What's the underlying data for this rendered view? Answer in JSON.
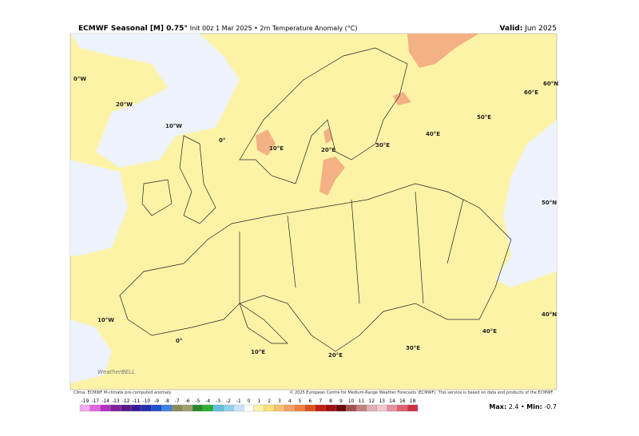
{
  "header": {
    "title": "ECMWF Seasonal [M] 0.75°",
    "subtitle": "Init 00z 1 Mar 2025 • 2m Temperature Anomaly (°C)",
    "valid_label": "Valid:",
    "valid_value": "Jun 2025"
  },
  "map_labels": [
    "0°W",
    "20°W",
    "10°W",
    "0°",
    "10°E",
    "20°E",
    "30°E",
    "40°E",
    "50°E",
    "60°E",
    "60°N",
    "50°N",
    "40°N",
    "10°W",
    "0°",
    "10°E",
    "20°E",
    "30°E",
    "40°E"
  ],
  "watermark": "WeatherBELL",
  "footer": {
    "left": "Clima: ECMWF M-climate pre-computed anomaly",
    "center": "© 2025 European Centre for Medium-Range Weather Forecasts (ECMWF). This service is based on data and products of the ECMWF."
  },
  "colorbar": {
    "labels": [
      "-19",
      "-17",
      "-14",
      "-13",
      "-12",
      "-11",
      "-10",
      "-9",
      "-8",
      "-7",
      "-6",
      "-5",
      "-4",
      "-3",
      "-2",
      "-1",
      "0",
      "1",
      "2",
      "3",
      "4",
      "5",
      "6",
      "7",
      "8",
      "9",
      "10",
      "11",
      "12",
      "13",
      "14",
      "16",
      "18"
    ],
    "colors": [
      "#f7a8f0",
      "#e066e0",
      "#b030c0",
      "#8020a0",
      "#5a1a8a",
      "#3a1a9a",
      "#2030b0",
      "#2050d0",
      "#4080e0",
      "#8a8a60",
      "#a0a070",
      "#2a8a2a",
      "#30b030",
      "#60c0e0",
      "#90d0f0",
      "#c8e4f8",
      "#ffffff",
      "#fdf3a7",
      "#fbe07a",
      "#f8c070",
      "#f4a060",
      "#f08040",
      "#e05020",
      "#c02010",
      "#a01010",
      "#700808",
      "#a05050",
      "#c08080",
      "#e0b0b0",
      "#f0c8d0",
      "#e890a0",
      "#e06070",
      "#d03040"
    ]
  },
  "stats": {
    "max_label": "Max:",
    "max_value": "2.4",
    "sep": "•",
    "min_label": "Min:",
    "min_value": "-0.7"
  }
}
